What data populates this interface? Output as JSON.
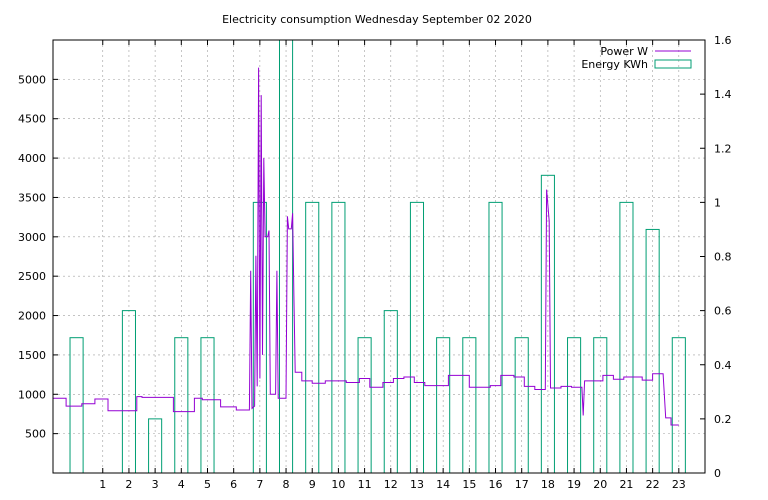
{
  "chart_data": {
    "type": "line",
    "title": "Electricity consumption Wednesday September 02 2020",
    "x_axis": {
      "range": [
        -0.9,
        24.0
      ],
      "ticks": [
        1,
        2,
        3,
        4,
        5,
        6,
        7,
        8,
        9,
        10,
        11,
        12,
        13,
        14,
        15,
        16,
        17,
        18,
        19,
        20,
        21,
        22,
        23
      ]
    },
    "y_axis_left": {
      "range": [
        0,
        5500
      ],
      "ticks": [
        500,
        1000,
        1500,
        2000,
        2500,
        3000,
        3500,
        4000,
        4500,
        5000
      ]
    },
    "y_axis_right": {
      "range": [
        0,
        1.6
      ],
      "ticks": [
        "0",
        "0.2",
        "0.4",
        "0.6",
        "0.8",
        "1",
        "1.2",
        "1.4",
        "1.6"
      ]
    },
    "grid": true,
    "legend_position": "top-right",
    "series": [
      {
        "name": "Power W",
        "type": "step-line",
        "axis": "left",
        "color": "#9400d3",
        "points": [
          [
            -0.9,
            950
          ],
          [
            -0.4,
            950
          ],
          [
            -0.4,
            850
          ],
          [
            0.2,
            850
          ],
          [
            0.2,
            880
          ],
          [
            0.7,
            880
          ],
          [
            0.7,
            940
          ],
          [
            1.2,
            940
          ],
          [
            1.2,
            790
          ],
          [
            2.3,
            790
          ],
          [
            2.3,
            970
          ],
          [
            2.5,
            970
          ],
          [
            2.5,
            960
          ],
          [
            3.7,
            960
          ],
          [
            3.7,
            780
          ],
          [
            4.5,
            780
          ],
          [
            4.5,
            950
          ],
          [
            4.8,
            950
          ],
          [
            4.8,
            930
          ],
          [
            5.5,
            930
          ],
          [
            5.5,
            840
          ],
          [
            6.1,
            840
          ],
          [
            6.1,
            800
          ],
          [
            6.6,
            800
          ],
          [
            6.65,
            2570
          ],
          [
            6.7,
            820
          ],
          [
            6.8,
            850
          ],
          [
            6.85,
            2760
          ],
          [
            6.9,
            1100
          ],
          [
            6.95,
            5150
          ],
          [
            7.0,
            1200
          ],
          [
            7.05,
            4800
          ],
          [
            7.1,
            1500
          ],
          [
            7.15,
            4000
          ],
          [
            7.2,
            3000
          ],
          [
            7.3,
            3000
          ],
          [
            7.35,
            3080
          ],
          [
            7.4,
            1000
          ],
          [
            7.6,
            1000
          ],
          [
            7.65,
            2570
          ],
          [
            7.7,
            950
          ],
          [
            8.0,
            950
          ],
          [
            8.05,
            3260
          ],
          [
            8.1,
            3100
          ],
          [
            8.2,
            3100
          ],
          [
            8.25,
            3300
          ],
          [
            8.3,
            2250
          ],
          [
            8.35,
            1280
          ],
          [
            8.6,
            1280
          ],
          [
            8.6,
            1170
          ],
          [
            9.0,
            1170
          ],
          [
            9.0,
            1140
          ],
          [
            9.5,
            1140
          ],
          [
            9.5,
            1170
          ],
          [
            10.3,
            1170
          ],
          [
            10.3,
            1150
          ],
          [
            10.8,
            1150
          ],
          [
            10.8,
            1200
          ],
          [
            11.2,
            1200
          ],
          [
            11.2,
            1090
          ],
          [
            11.7,
            1090
          ],
          [
            11.7,
            1150
          ],
          [
            12.1,
            1150
          ],
          [
            12.1,
            1200
          ],
          [
            12.5,
            1200
          ],
          [
            12.5,
            1220
          ],
          [
            12.9,
            1220
          ],
          [
            12.9,
            1150
          ],
          [
            13.3,
            1150
          ],
          [
            13.3,
            1110
          ],
          [
            14.2,
            1110
          ],
          [
            14.2,
            1240
          ],
          [
            15.0,
            1240
          ],
          [
            15.0,
            1090
          ],
          [
            15.8,
            1090
          ],
          [
            15.8,
            1110
          ],
          [
            16.2,
            1110
          ],
          [
            16.2,
            1240
          ],
          [
            16.7,
            1240
          ],
          [
            16.7,
            1220
          ],
          [
            17.1,
            1220
          ],
          [
            17.1,
            1100
          ],
          [
            17.5,
            1100
          ],
          [
            17.5,
            1060
          ],
          [
            17.9,
            1060
          ],
          [
            17.95,
            3600
          ],
          [
            18.05,
            3200
          ],
          [
            18.1,
            1080
          ],
          [
            18.5,
            1080
          ],
          [
            18.5,
            1100
          ],
          [
            18.9,
            1100
          ],
          [
            18.9,
            1090
          ],
          [
            19.3,
            1090
          ],
          [
            19.35,
            730
          ],
          [
            19.4,
            1170
          ],
          [
            20.1,
            1170
          ],
          [
            20.1,
            1240
          ],
          [
            20.5,
            1240
          ],
          [
            20.5,
            1190
          ],
          [
            20.9,
            1190
          ],
          [
            20.9,
            1220
          ],
          [
            21.6,
            1220
          ],
          [
            21.6,
            1180
          ],
          [
            22.0,
            1180
          ],
          [
            22.0,
            1260
          ],
          [
            22.4,
            1260
          ],
          [
            22.5,
            700
          ],
          [
            22.7,
            700
          ],
          [
            22.7,
            610
          ],
          [
            23.0,
            610
          ]
        ]
      },
      {
        "name": "Energy KWh",
        "type": "boxes",
        "axis": "right",
        "color": "#009e73",
        "bars": [
          {
            "x0": -0.25,
            "x1": 0.25,
            "value": 0.5
          },
          {
            "x0": 1.75,
            "x1": 2.25,
            "value": 0.6
          },
          {
            "x0": 2.75,
            "x1": 3.25,
            "value": 0.2
          },
          {
            "x0": 3.75,
            "x1": 4.25,
            "value": 0.5
          },
          {
            "x0": 4.75,
            "x1": 5.25,
            "value": 0.5
          },
          {
            "x0": 6.75,
            "x1": 7.25,
            "value": 1.0
          },
          {
            "x0": 7.75,
            "x1": 8.25,
            "value": 1.6
          },
          {
            "x0": 8.75,
            "x1": 9.25,
            "value": 1.0
          },
          {
            "x0": 9.75,
            "x1": 10.25,
            "value": 1.0
          },
          {
            "x0": 10.75,
            "x1": 11.25,
            "value": 0.5
          },
          {
            "x0": 11.75,
            "x1": 12.25,
            "value": 0.6
          },
          {
            "x0": 12.75,
            "x1": 13.25,
            "value": 1.0
          },
          {
            "x0": 13.75,
            "x1": 14.25,
            "value": 0.5
          },
          {
            "x0": 14.75,
            "x1": 15.25,
            "value": 0.5
          },
          {
            "x0": 15.75,
            "x1": 16.25,
            "value": 1.0
          },
          {
            "x0": 16.75,
            "x1": 17.25,
            "value": 0.5
          },
          {
            "x0": 17.75,
            "x1": 18.25,
            "value": 1.1
          },
          {
            "x0": 18.75,
            "x1": 19.25,
            "value": 0.5
          },
          {
            "x0": 19.75,
            "x1": 20.25,
            "value": 0.5
          },
          {
            "x0": 20.75,
            "x1": 21.25,
            "value": 1.0
          },
          {
            "x0": 21.75,
            "x1": 22.25,
            "value": 0.9
          },
          {
            "x0": 22.75,
            "x1": 23.25,
            "value": 0.5
          }
        ]
      }
    ]
  }
}
